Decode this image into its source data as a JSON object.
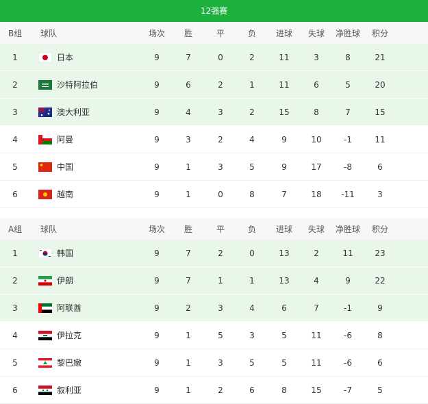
{
  "title": "12强赛",
  "groups": [
    {
      "header": [
        "B组",
        "球队",
        "场次",
        "胜",
        "平",
        "负",
        "进球",
        "失球",
        "净胜球",
        "积分"
      ],
      "rows": [
        [
          1,
          "日本",
          9,
          7,
          0,
          2,
          11,
          3,
          8,
          21
        ],
        [
          2,
          "沙特阿拉伯",
          9,
          6,
          2,
          1,
          11,
          6,
          5,
          20
        ],
        [
          3,
          "澳大利亚",
          9,
          4,
          3,
          2,
          15,
          8,
          7,
          15
        ],
        [
          4,
          "阿曼",
          9,
          3,
          2,
          4,
          9,
          10,
          -1,
          11
        ],
        [
          5,
          "中国",
          9,
          1,
          3,
          5,
          9,
          17,
          -8,
          6
        ],
        [
          6,
          "越南",
          9,
          1,
          0,
          8,
          7,
          18,
          -11,
          3
        ]
      ]
    },
    {
      "header": [
        "A组",
        "球队",
        "场次",
        "胜",
        "平",
        "负",
        "进球",
        "失球",
        "净胜球",
        "积分"
      ],
      "rows": [
        [
          1,
          "韩国",
          9,
          7,
          2,
          0,
          13,
          2,
          11,
          23
        ],
        [
          2,
          "伊朗",
          9,
          7,
          1,
          1,
          13,
          4,
          9,
          22
        ],
        [
          3,
          "阿联酋",
          9,
          2,
          3,
          4,
          6,
          7,
          -1,
          9
        ],
        [
          4,
          "伊拉克",
          9,
          1,
          5,
          3,
          5,
          11,
          -6,
          8
        ],
        [
          5,
          "黎巴嫩",
          9,
          1,
          3,
          5,
          5,
          11,
          -6,
          6
        ],
        [
          6,
          "叙利亚",
          9,
          1,
          2,
          6,
          8,
          15,
          -7,
          5
        ]
      ]
    }
  ]
}
